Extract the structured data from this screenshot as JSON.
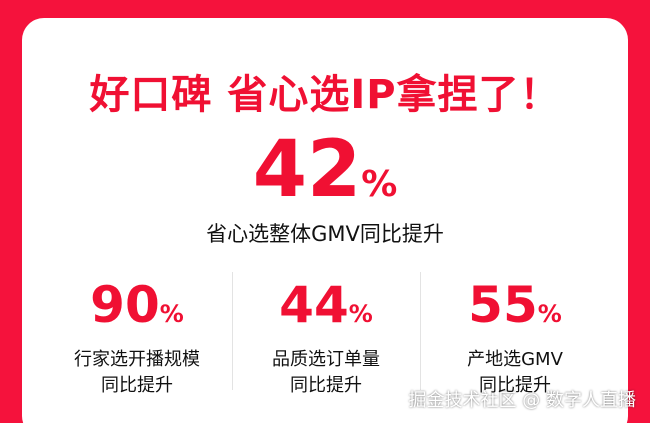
{
  "header": {
    "title": "好口碑 省心选IP拿捏了！"
  },
  "hero": {
    "value": "42",
    "unit": "%",
    "label": "省心选整体GMV同比提升"
  },
  "stats": [
    {
      "value": "90",
      "unit": "%",
      "label_lines": [
        "行家选开播规模",
        "同比提升"
      ]
    },
    {
      "value": "44",
      "unit": "%",
      "label_lines": [
        "品质选订单量",
        "同比提升"
      ]
    },
    {
      "value": "55",
      "unit": "%",
      "label_lines": [
        "产地选GMV",
        "同比提升"
      ]
    }
  ],
  "watermark": "掘金技术社区 @ 数字人直播"
}
